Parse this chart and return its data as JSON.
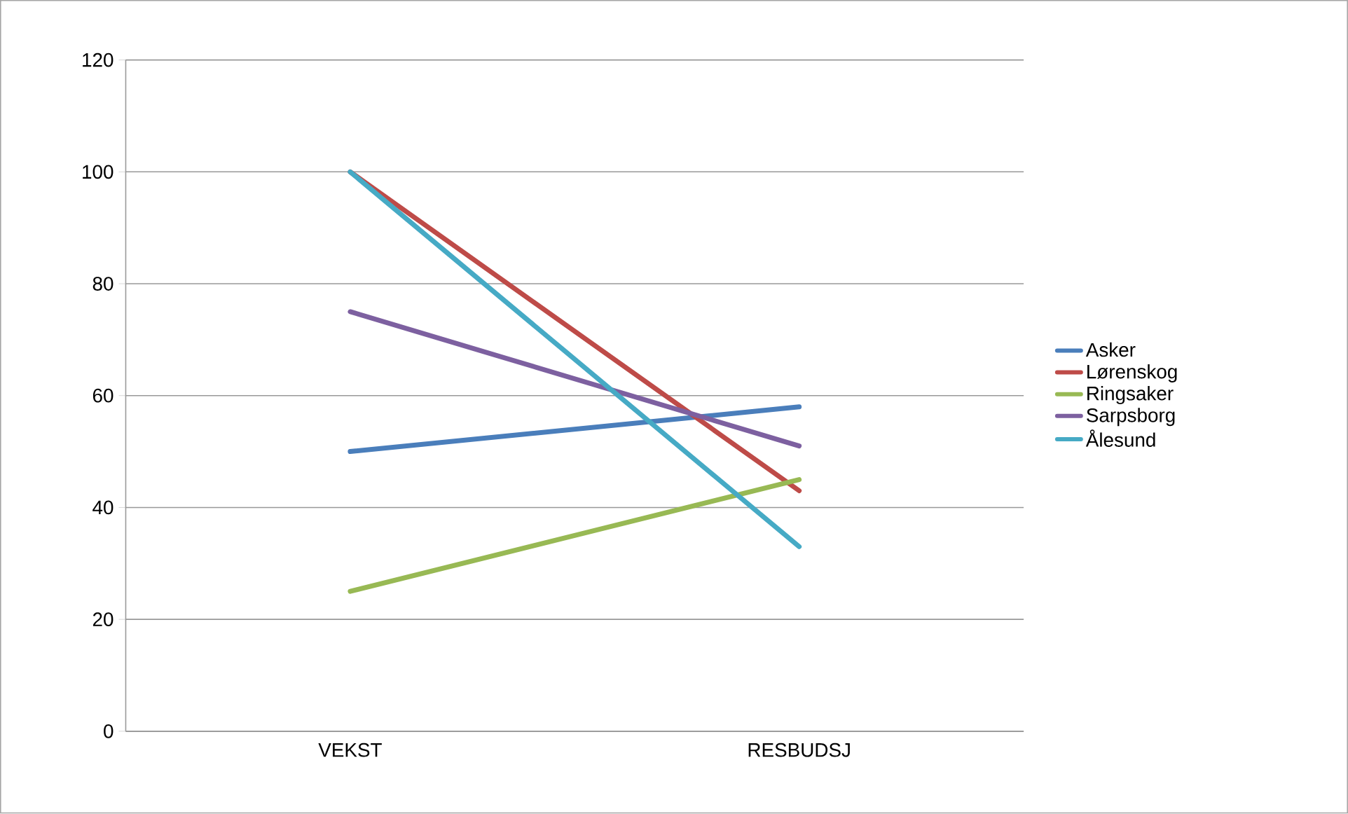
{
  "chart_data": {
    "type": "line",
    "categories": [
      "VEKST",
      "RESBUDSJ"
    ],
    "series": [
      {
        "name": "Asker",
        "color": "#4a7ebb",
        "values": [
          50,
          58
        ]
      },
      {
        "name": "Lørenskog",
        "color": "#be4b48",
        "values": [
          100,
          43
        ]
      },
      {
        "name": "Ringsaker",
        "color": "#98b954",
        "values": [
          25,
          45
        ]
      },
      {
        "name": "Sarpsborg",
        "color": "#7d60a0",
        "values": [
          75,
          51
        ]
      },
      {
        "name": "Ålesund",
        "color": "#46aac5",
        "values": [
          100,
          33
        ]
      }
    ],
    "ylim": [
      0,
      120
    ],
    "yticks": [
      0,
      20,
      40,
      60,
      80,
      100,
      120
    ],
    "grid": "y",
    "legend": "right",
    "marker": "none",
    "line_style": "solid"
  }
}
